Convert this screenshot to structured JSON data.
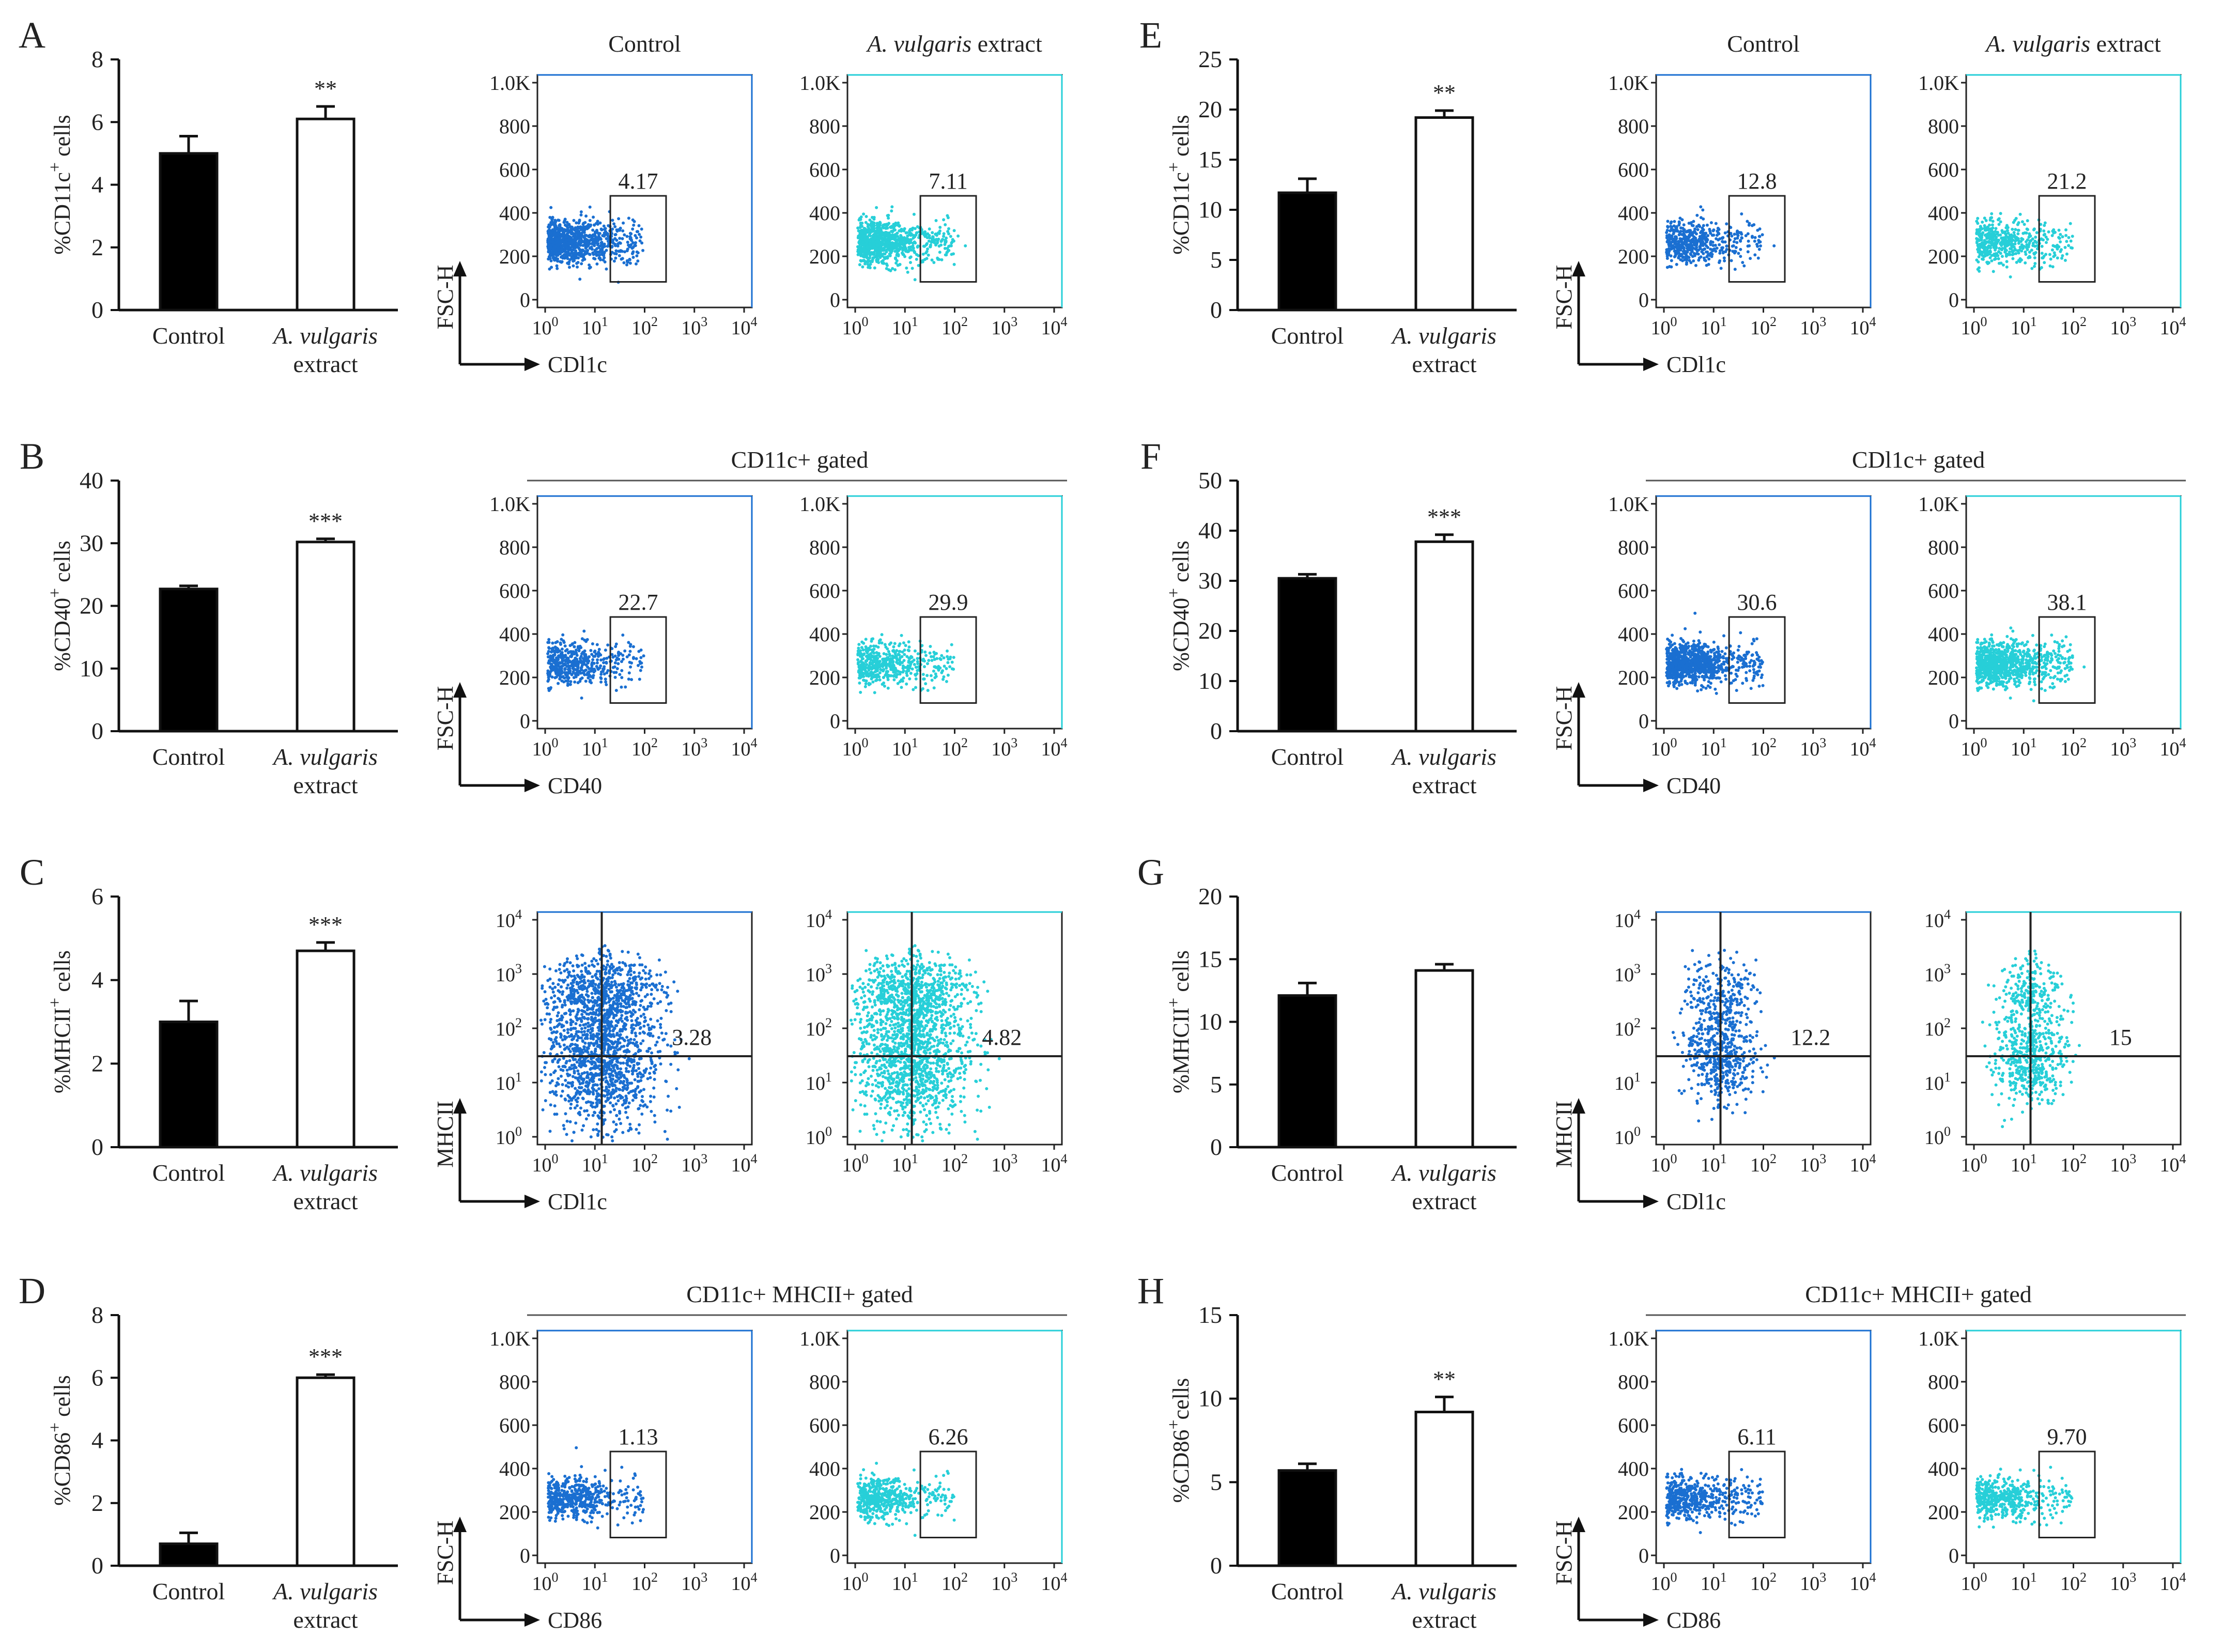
{
  "figure": {
    "description_labels": [
      "Control",
      "A. vulgaris extract"
    ]
  },
  "chart_data": [
    {
      "id": "A",
      "type": "bar",
      "ylabel_main": "%CD11c",
      "ylabel_sup": "+",
      "ylabel_tail": " cells",
      "ylim": [
        0,
        8
      ],
      "ticks": [
        0,
        2,
        4,
        6,
        8
      ],
      "categories": [
        "Control",
        "A. vulgaris extract"
      ],
      "values": [
        5.0,
        6.1
      ],
      "errors": [
        0.55,
        0.4
      ],
      "significance": "**",
      "gate_header": null,
      "flow_titles": [
        "Control",
        "A. vulgaris extract"
      ],
      "flow_type": "gate",
      "flow_y_axis": "FSC-H",
      "flow_x_axis": "CDl1c",
      "flow_yticks": [
        "1.0K",
        "800",
        "600",
        "400",
        "200",
        "0"
      ],
      "flow_percent": [
        "4.17",
        "7.11"
      ]
    },
    {
      "id": "B",
      "type": "bar",
      "ylabel_main": "%CD40",
      "ylabel_sup": "+",
      "ylabel_tail": " cells",
      "ylim": [
        0,
        40
      ],
      "ticks": [
        0,
        10,
        20,
        30,
        40
      ],
      "categories": [
        "Control",
        "A. vulgaris extract"
      ],
      "values": [
        22.7,
        30.2
      ],
      "errors": [
        0.5,
        0.5
      ],
      "significance": "***",
      "gate_header": "CD11c+ gated",
      "flow_titles": null,
      "flow_type": "gate",
      "flow_y_axis": "FSC-H",
      "flow_x_axis": "CD40",
      "flow_yticks": [
        "1.0K",
        "800",
        "600",
        "400",
        "200",
        "0"
      ],
      "flow_percent": [
        "22.7",
        "29.9"
      ]
    },
    {
      "id": "C",
      "type": "bar",
      "ylabel_main": "%MHCII",
      "ylabel_sup": "+",
      "ylabel_tail": " cells",
      "ylim": [
        0,
        6
      ],
      "ticks": [
        0,
        2,
        4,
        6
      ],
      "categories": [
        "Control",
        "A. vulgaris extract"
      ],
      "values": [
        3.0,
        4.7
      ],
      "errors": [
        0.5,
        0.2
      ],
      "significance": "***",
      "gate_header": null,
      "flow_titles": null,
      "flow_type": "quad",
      "flow_y_axis": "MHCII",
      "flow_x_axis": "CDl1c",
      "flow_percent": [
        "3.28",
        "4.82"
      ]
    },
    {
      "id": "D",
      "type": "bar",
      "ylabel_main": "%CD86",
      "ylabel_sup": "+",
      "ylabel_tail": " cells",
      "ylim": [
        0,
        8
      ],
      "ticks": [
        0,
        2,
        4,
        6,
        8
      ],
      "categories": [
        "Control",
        "A. vulgaris extract"
      ],
      "values": [
        0.7,
        6.0
      ],
      "errors": [
        0.35,
        0.1
      ],
      "significance": "***",
      "gate_header": "CD11c+ MHCII+ gated",
      "flow_titles": null,
      "flow_type": "gate",
      "flow_y_axis": "FSC-H",
      "flow_x_axis": "CD86",
      "flow_yticks": [
        "1.0K",
        "800",
        "600",
        "400",
        "200",
        "0"
      ],
      "flow_percent": [
        "1.13",
        "6.26"
      ]
    },
    {
      "id": "E",
      "type": "bar",
      "ylabel_main": "%CD11c",
      "ylabel_sup": "+",
      "ylabel_tail": " cells",
      "ylim": [
        0,
        25
      ],
      "ticks": [
        0,
        5,
        10,
        15,
        20,
        25
      ],
      "categories": [
        "Control",
        "A. vulgaris extract"
      ],
      "values": [
        11.7,
        19.2
      ],
      "errors": [
        1.4,
        0.7
      ],
      "significance": "**",
      "gate_header": null,
      "flow_titles": [
        "Control",
        "A. vulgaris extract"
      ],
      "flow_type": "gate",
      "flow_y_axis": "FSC-H",
      "flow_x_axis": "CDl1c",
      "flow_yticks": [
        "1.0K",
        "800",
        "600",
        "400",
        "200",
        "0"
      ],
      "flow_percent": [
        "12.8",
        "21.2"
      ]
    },
    {
      "id": "F",
      "type": "bar",
      "ylabel_main": "%CD40",
      "ylabel_sup": "+",
      "ylabel_tail": " cells",
      "ylim": [
        0,
        50
      ],
      "ticks": [
        0,
        10,
        20,
        30,
        40,
        50
      ],
      "categories": [
        "Control",
        "A. vulgaris extract"
      ],
      "values": [
        30.5,
        37.8
      ],
      "errors": [
        0.8,
        1.4
      ],
      "significance": "***",
      "gate_header": "CDl1c+ gated",
      "flow_titles": null,
      "flow_type": "gate",
      "flow_y_axis": "FSC-H",
      "flow_x_axis": "CD40",
      "flow_yticks": [
        "1.0K",
        "800",
        "600",
        "400",
        "200",
        "0"
      ],
      "flow_percent": [
        "30.6",
        "38.1"
      ]
    },
    {
      "id": "G",
      "type": "bar",
      "ylabel_main": "%MHCII",
      "ylabel_sup": "+",
      "ylabel_tail": " cells",
      "ylim": [
        0,
        20
      ],
      "ticks": [
        0,
        5,
        10,
        15,
        20
      ],
      "categories": [
        "Control",
        "A. vulgaris extract"
      ],
      "values": [
        12.1,
        14.1
      ],
      "errors": [
        1.0,
        0.5
      ],
      "significance": "",
      "gate_header": null,
      "flow_titles": null,
      "flow_type": "quad",
      "flow_y_axis": "MHCII",
      "flow_x_axis": "CDl1c",
      "flow_percent": [
        "12.2",
        "15"
      ]
    },
    {
      "id": "H",
      "type": "bar",
      "ylabel_main": "%CD86",
      "ylabel_sup": "+",
      "ylabel_tail": "cells",
      "ylim": [
        0,
        15
      ],
      "ticks": [
        0,
        5,
        10,
        15
      ],
      "categories": [
        "Control",
        "A. vulgaris extract"
      ],
      "values": [
        5.7,
        9.2
      ],
      "errors": [
        0.4,
        0.9
      ],
      "significance": "**",
      "gate_header": "CD11c+ MHCII+ gated",
      "flow_titles": null,
      "flow_type": "gate",
      "flow_y_axis": "FSC-H",
      "flow_x_axis": "CD86",
      "flow_yticks": [
        "1.0K",
        "800",
        "600",
        "400",
        "200",
        "0"
      ],
      "flow_percent": [
        "6.11",
        "9.70"
      ]
    }
  ],
  "colors": {
    "control_dots": "#1a6fd1",
    "extract_dots": "#27cfd8",
    "control_bar": "#000000",
    "extract_bar": "#ffffff",
    "axis": "#222222"
  }
}
